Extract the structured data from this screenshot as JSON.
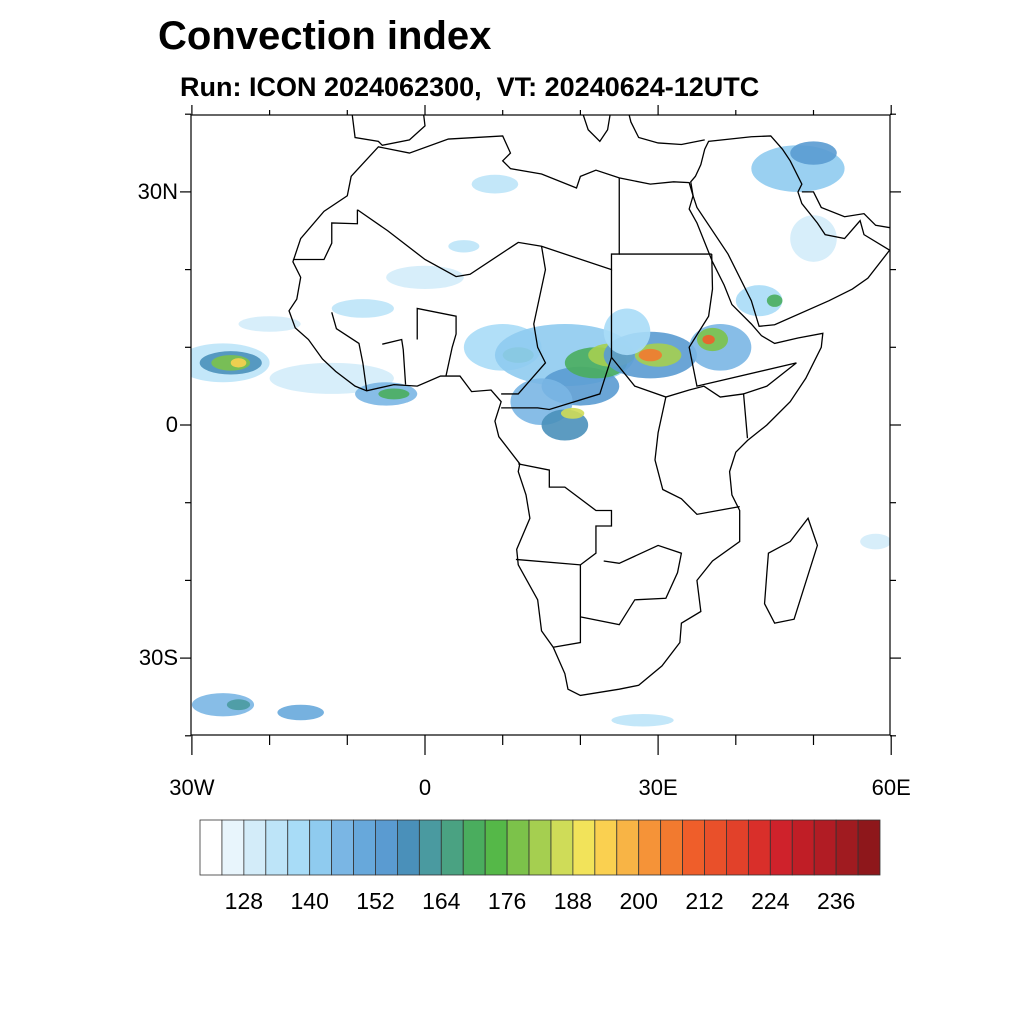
{
  "title": "Convection index",
  "subtitle": "Run: ICON 2024062300,  VT: 20240624-12UTC",
  "map": {
    "extent": {
      "lon": [
        -30,
        60
      ],
      "lat": [
        -40,
        40
      ]
    },
    "lat_ticks": [
      {
        "value": 30,
        "label": "30N"
      },
      {
        "value": 0,
        "label": "0"
      },
      {
        "value": -30,
        "label": "30S"
      }
    ],
    "lon_ticks": [
      {
        "value": -30,
        "label": "30W"
      },
      {
        "value": 0,
        "label": "0"
      },
      {
        "value": 30,
        "label": "30E"
      },
      {
        "value": 60,
        "label": "60E"
      }
    ]
  },
  "colorbar": {
    "min": 120,
    "step": 4,
    "labels": [
      "128",
      "140",
      "152",
      "164",
      "176",
      "188",
      "200",
      "212",
      "224",
      "236"
    ],
    "colors": [
      "#ffffff",
      "#e8f5fc",
      "#d3ecf9",
      "#bde4f8",
      "#a8dcf7",
      "#8fcbef",
      "#7ab6e4",
      "#67a8db",
      "#5a9bd1",
      "#4a90ba",
      "#4a9aa0",
      "#4aa282",
      "#4aad5e",
      "#55b848",
      "#7cc24a",
      "#a5cf50",
      "#cfdc58",
      "#f2e35a",
      "#fad050",
      "#f8b445",
      "#f59338",
      "#f27a2f",
      "#ef5e2a",
      "#e9502a",
      "#e2412a",
      "#d92f2a",
      "#cf222b",
      "#c01e26",
      "#b11c24",
      "#a01b20",
      "#8e171b"
    ]
  }
}
